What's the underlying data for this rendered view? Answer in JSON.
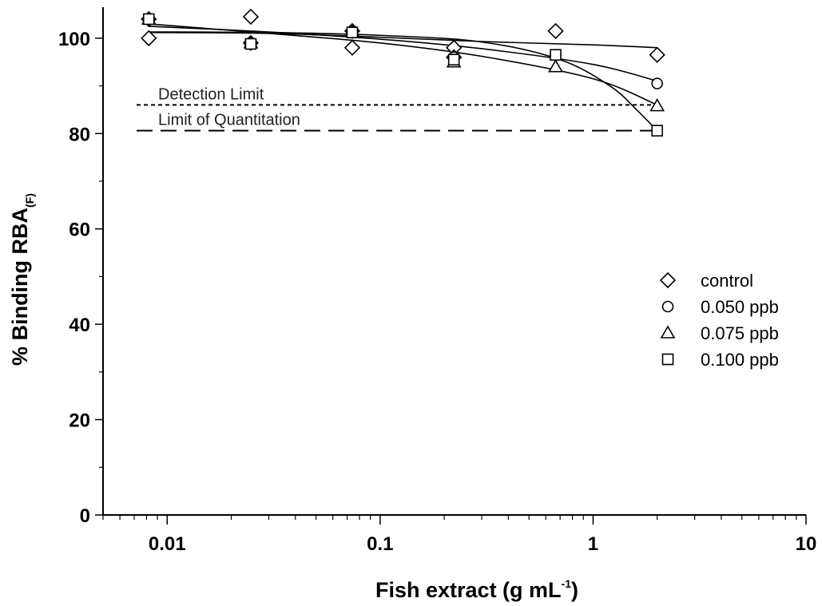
{
  "chart_data": {
    "type": "scatter",
    "x_scale": "log",
    "xlim": [
      0.005,
      10
    ],
    "ylim": [
      0,
      106
    ],
    "grid": false,
    "legend_position": "right",
    "x_ticks": [
      {
        "value": 0.01,
        "label": "0.01"
      },
      {
        "value": 0.1,
        "label": "0.1"
      },
      {
        "value": 1,
        "label": "1"
      },
      {
        "value": 10,
        "label": "10"
      }
    ],
    "y_ticks": [
      {
        "value": 0,
        "label": "0"
      },
      {
        "value": 20,
        "label": "20"
      },
      {
        "value": 40,
        "label": "40"
      },
      {
        "value": 60,
        "label": "60"
      },
      {
        "value": 80,
        "label": "80"
      },
      {
        "value": 100,
        "label": "100"
      }
    ],
    "xlabel": {
      "text": "Fish extract (g mL",
      "sup": "-1",
      "suffix": ")"
    },
    "ylabel": {
      "text": "% Binding RBA",
      "sub": "(F)"
    },
    "series": [
      {
        "name": "control",
        "marker": "diamond",
        "x": [
          0.0082,
          0.0082,
          0.0247,
          0.0247,
          0.074,
          0.074,
          0.222,
          0.222,
          0.667,
          2.0
        ],
        "y": [
          100,
          104,
          104.5,
          99,
          98,
          101.5,
          98,
          96,
          101.5,
          96.5
        ],
        "fit": [
          [
            0.0082,
            101.2
          ],
          [
            0.03,
            101.0
          ],
          [
            0.1,
            100.2
          ],
          [
            0.3,
            99.3
          ],
          [
            1.0,
            98.6
          ],
          [
            2.0,
            98.0
          ]
        ]
      },
      {
        "name": "0.050 ppb",
        "marker": "circle",
        "x": [
          0.0082,
          0.0247,
          0.074,
          0.222,
          0.667,
          2.0
        ],
        "y": [
          104,
          99,
          101.5,
          96,
          96.5,
          90.5
        ],
        "fit": [
          [
            0.0082,
            102.5
          ],
          [
            0.03,
            101.3
          ],
          [
            0.1,
            99.8
          ],
          [
            0.3,
            97.8
          ],
          [
            1.0,
            94.5
          ],
          [
            2.0,
            91.0
          ]
        ]
      },
      {
        "name": "0.075 ppb",
        "marker": "triangle",
        "x": [
          0.0082,
          0.0247,
          0.074,
          0.222,
          0.667,
          2.0
        ],
        "y": [
          104,
          99,
          101.5,
          95,
          94,
          85.8
        ],
        "fit": [
          [
            0.0082,
            103.0
          ],
          [
            0.03,
            101.0
          ],
          [
            0.1,
            99.0
          ],
          [
            0.3,
            96.2
          ],
          [
            1.0,
            91.5
          ],
          [
            2.0,
            86.0
          ]
        ]
      },
      {
        "name": "0.100 ppb",
        "marker": "square",
        "x": [
          0.0082,
          0.0247,
          0.074,
          0.222,
          0.667,
          2.0
        ],
        "y": [
          104,
          98.8,
          101.2,
          95.5,
          96.5,
          80.6
        ],
        "fit": [
          [
            0.0082,
            101.3
          ],
          [
            0.03,
            101.2
          ],
          [
            0.1,
            100.6
          ],
          [
            0.3,
            99.2
          ],
          [
            0.7,
            95.5
          ],
          [
            1.2,
            90.0
          ],
          [
            1.6,
            85.0
          ],
          [
            2.0,
            80.6
          ]
        ]
      }
    ],
    "reference_lines": [
      {
        "label": "Detection Limit",
        "y": 86,
        "style": "dotted"
      },
      {
        "label": "Limit of Quantitation",
        "y": 80.6,
        "style": "dashed"
      }
    ]
  }
}
